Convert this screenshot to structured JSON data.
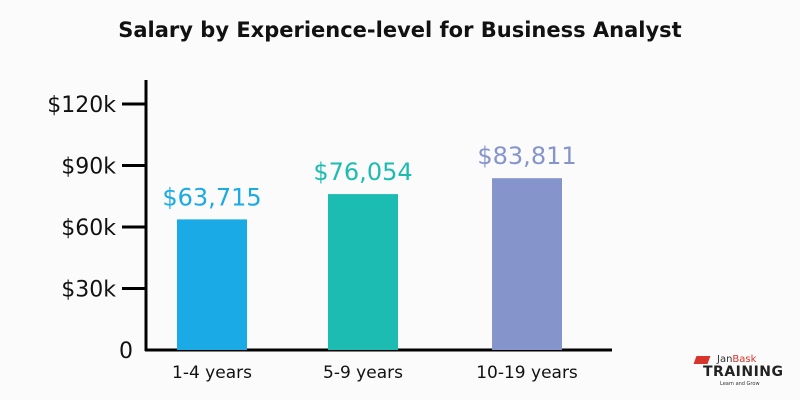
{
  "chart_data": {
    "type": "bar",
    "title": "Salary by Experience-level for Business Analyst",
    "categories": [
      "1-4 years",
      "5-9 years",
      "10-19 years"
    ],
    "values": [
      63715,
      76054,
      83811
    ],
    "data_labels": [
      "$63,715",
      "$76,054",
      "$83,811"
    ],
    "colors": [
      "#1aabe6",
      "#1dbcb2",
      "#8595cc"
    ],
    "yticks": [
      0,
      30000,
      60000,
      90000,
      120000
    ],
    "ytick_labels": [
      "0",
      "$30k",
      "$60k",
      "$90k",
      "$120k"
    ],
    "ylim": [
      0,
      120000
    ],
    "xlabel": "",
    "ylabel": "",
    "grid": false
  },
  "logo": {
    "brand_a": "Jan",
    "brand_b": "Bask",
    "brand_c": "TRAINING",
    "tagline": "Learn and Grow"
  }
}
